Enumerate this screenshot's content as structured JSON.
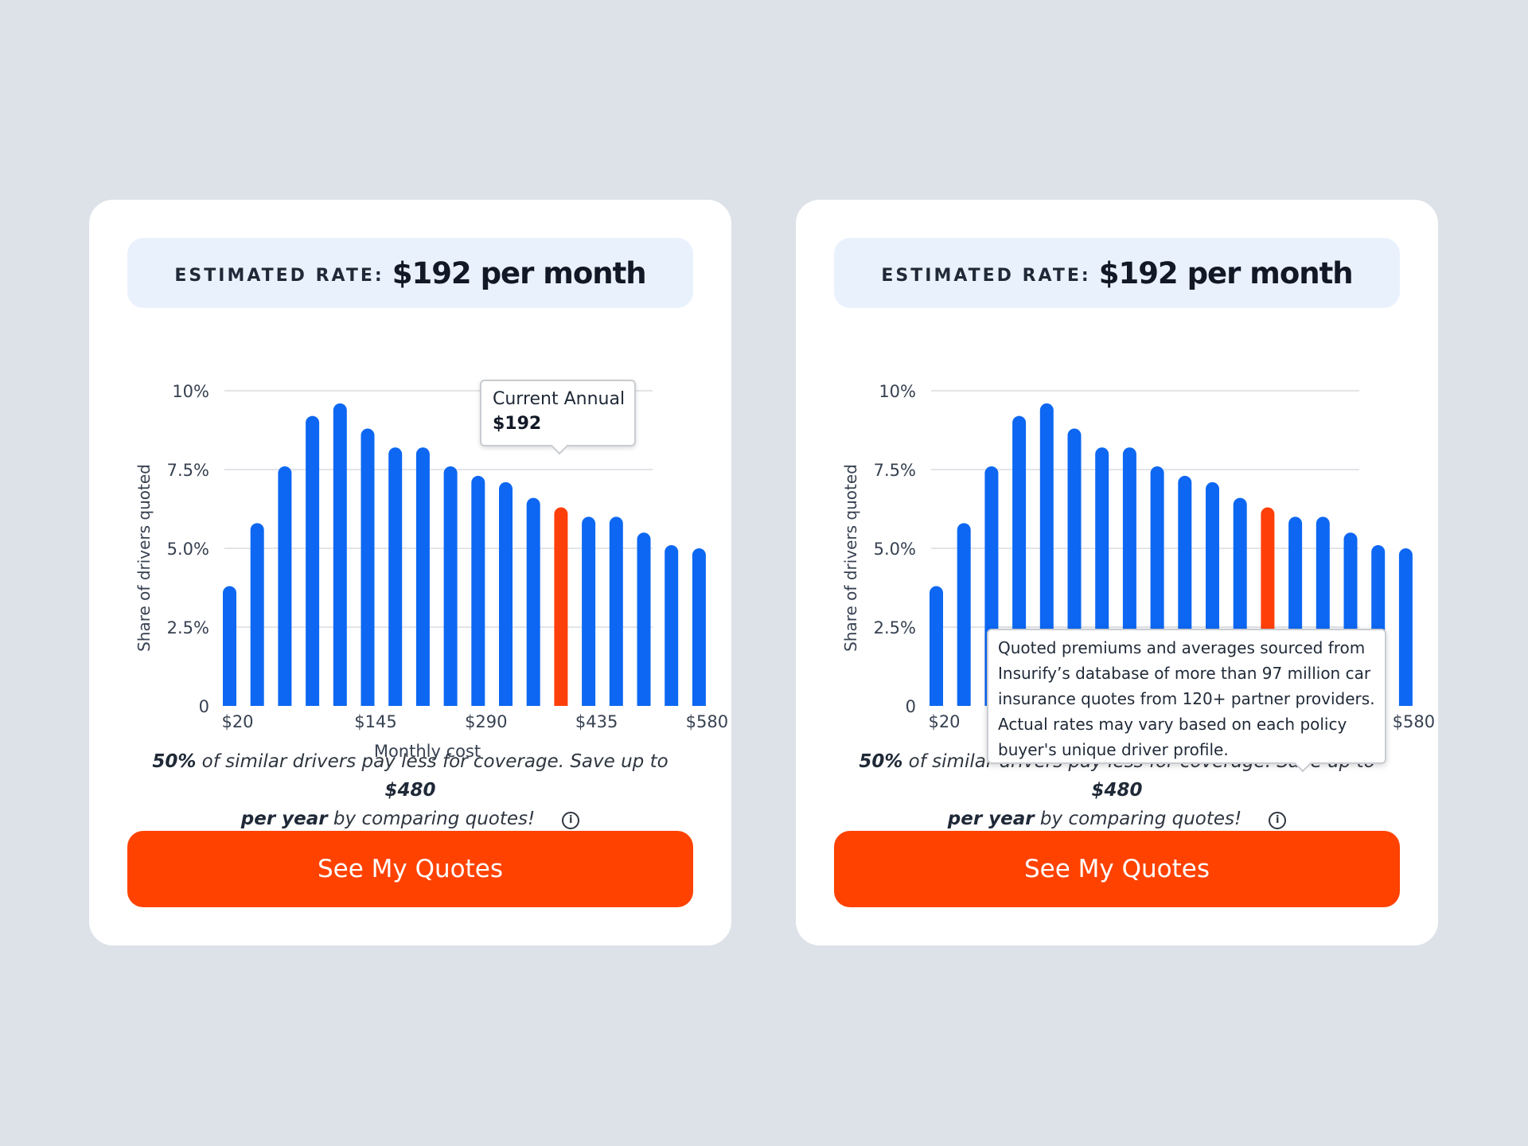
{
  "cards": [
    {
      "rate_label": "ESTIMATED RATE:",
      "rate_value": "$192 per month",
      "tooltip": {
        "title": "Current Annual",
        "value": "$192"
      },
      "summary": {
        "pct": "50%",
        "text1": " of similar drivers pay less for coverage. Save up to ",
        "save": "$480",
        "per_year": "per year",
        "text2": " by comparing quotes!"
      },
      "info_icon": "info-icon",
      "cta_label": "See My Quotes"
    },
    {
      "rate_label": "ESTIMATED RATE:",
      "rate_value": "$192 per month",
      "tooltip": {
        "lines": [
          "Quoted premiums and averages sourced from",
          "Insurify’s database of more than 97 million car",
          "insurance quotes from 120+ partner providers.",
          "Actual rates may vary based on each policy",
          "buyer's unique driver profile."
        ]
      },
      "summary": {
        "pct": "50%",
        "text1": " of similar drivers pay less for coverage. Save up to ",
        "save": "$480",
        "per_year": "per year",
        "text2": " by comparing quotes!"
      },
      "info_icon": "info-icon",
      "cta_label": "See My Quotes"
    }
  ],
  "chart_data": {
    "type": "bar",
    "ylabel": "Share of drivers quoted",
    "xlabel": "Monthly cost",
    "ylim": [
      0,
      10
    ],
    "yticks": [
      "0",
      "2.5%",
      "5.0%",
      "7.5%",
      "10%"
    ],
    "xticks": [
      "$20",
      "$145",
      "$290",
      "$435",
      "$580"
    ],
    "values": [
      3.8,
      5.8,
      7.6,
      9.2,
      9.6,
      8.8,
      8.2,
      8.2,
      7.6,
      7.3,
      7.1,
      6.6,
      6.3,
      6.0,
      6.0,
      5.5,
      5.1,
      5.0
    ],
    "highlight_index": 12,
    "bar_color": "#0d67f2",
    "highlight_color": "#ff3f0a",
    "grid": true
  },
  "colors": {
    "background": "#dde2e9",
    "accent": "#ff4200",
    "banner": "#e9f1fd"
  }
}
